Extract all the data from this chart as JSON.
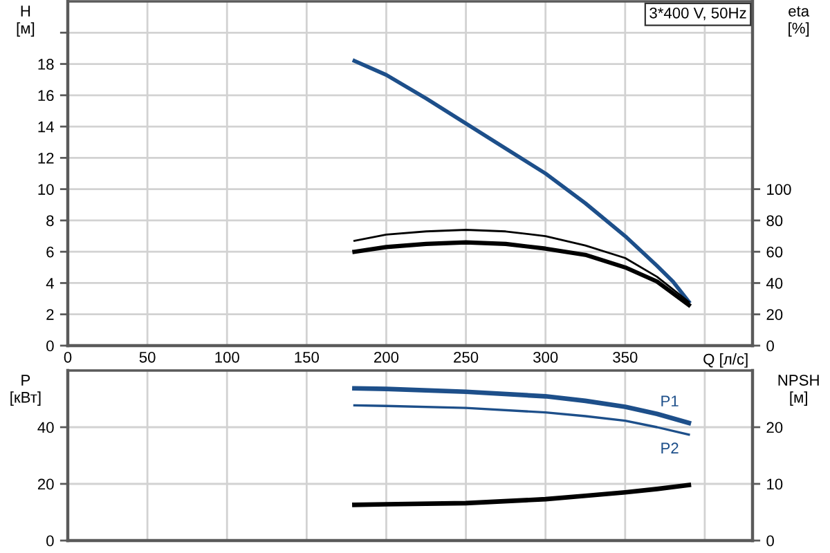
{
  "chart_data": [
    {
      "type": "line",
      "title": "3*400 V, 50Hz",
      "xlabel": "Q [л/с]",
      "ylabel": "H\n[м]",
      "y2label": "eta\n[%]",
      "xlim": [
        0,
        430
      ],
      "xticks": [
        0,
        50,
        100,
        150,
        200,
        250,
        300,
        350,
        {
          "value": 400,
          "label": null
        }
      ],
      "ylim": [
        0,
        22
      ],
      "yticks": [
        0,
        2,
        4,
        6,
        8,
        10,
        12,
        14,
        16,
        18,
        {
          "value": 20,
          "label": null
        }
      ],
      "y2lim": [
        0,
        220
      ],
      "y2ticks": [
        0,
        20,
        40,
        60,
        80,
        100
      ],
      "grid": true,
      "series": [
        {
          "color": "#1d4f8a",
          "x": [
            180,
            200,
            225,
            250,
            275,
            300,
            325,
            350,
            370,
            380,
            390
          ],
          "values": [
            18.2,
            17.3,
            15.8,
            14.2,
            12.6,
            11.0,
            9.1,
            7.0,
            5.1,
            4.1,
            2.8
          ]
        },
        {
          "color": "#000000",
          "axis": "y2",
          "x": [
            180,
            200,
            225,
            250,
            275,
            300,
            325,
            350,
            370,
            390
          ],
          "values": [
            67,
            71,
            73,
            74,
            73,
            70,
            64,
            56,
            44,
            28
          ]
        },
        {
          "color": "#000000",
          "axis": "y2",
          "x": [
            180,
            200,
            225,
            250,
            275,
            300,
            325,
            350,
            370,
            390
          ],
          "values": [
            60,
            63,
            65,
            66,
            65,
            62,
            58,
            50,
            41,
            26
          ]
        }
      ]
    },
    {
      "type": "line",
      "ylabel": "P\n[кВт]",
      "y2label": "NPSH\n[м]",
      "xlim": [
        0,
        430
      ],
      "xticks": [
        0,
        50,
        100,
        150,
        200,
        250,
        300,
        350,
        400
      ],
      "tick_labels": "y",
      "ylim": [
        0,
        60
      ],
      "yticks": [
        0,
        20,
        40
      ],
      "y2lim": [
        0,
        30
      ],
      "y2ticks": [
        0,
        10,
        20
      ],
      "grid": true,
      "series": [
        {
          "name": "P1",
          "color": "#1d4f8a",
          "x": [
            180,
            200,
            250,
            300,
            325,
            350,
            370,
            390
          ],
          "values": [
            53.7,
            53.5,
            52.5,
            50.9,
            49.3,
            47.2,
            44.7,
            41.5
          ]
        },
        {
          "name": "P2",
          "color": "#1d4f8a",
          "x": [
            180,
            200,
            250,
            300,
            325,
            350,
            370,
            390
          ],
          "values": [
            47.7,
            47.5,
            46.8,
            45.2,
            43.9,
            42.3,
            40.0,
            37.4
          ]
        },
        {
          "color": "#000000",
          "axis": "y2",
          "x": [
            180,
            200,
            250,
            300,
            325,
            350,
            370,
            390
          ],
          "values": [
            6.3,
            6.4,
            6.6,
            7.3,
            7.9,
            8.5,
            9.1,
            9.8
          ]
        }
      ]
    }
  ]
}
